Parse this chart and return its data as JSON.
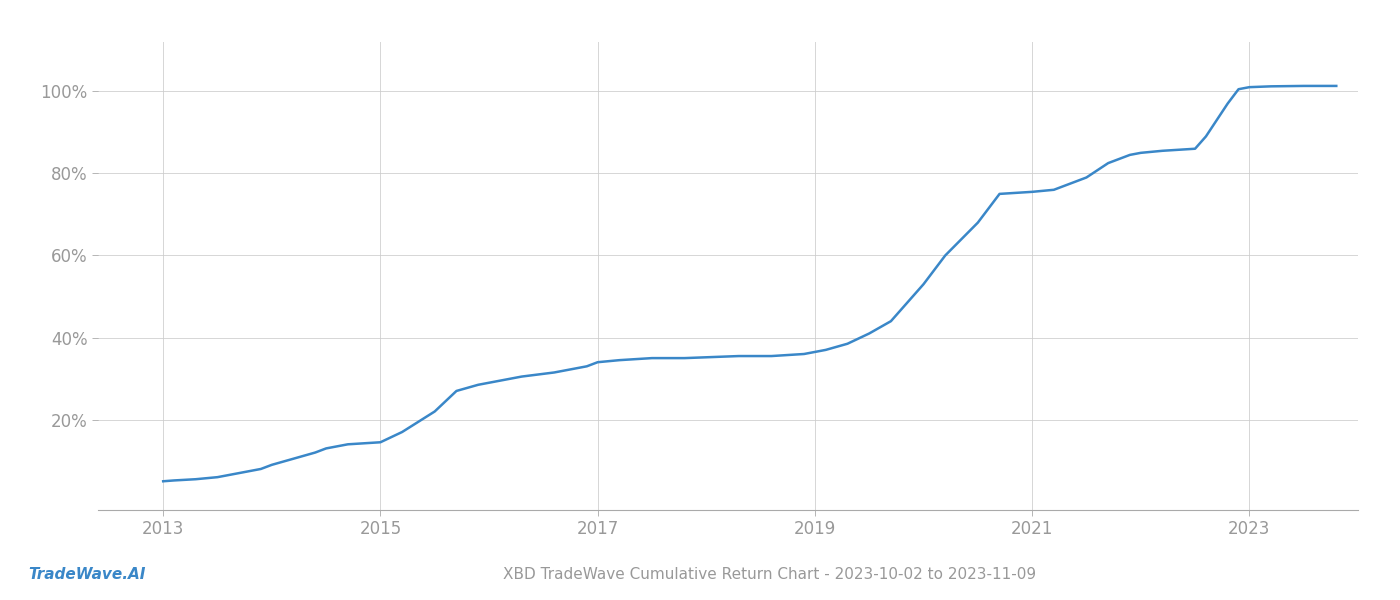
{
  "title": "XBD TradeWave Cumulative Return Chart - 2023-10-02 to 2023-11-09",
  "watermark": "TradeWave.AI",
  "line_color": "#3a87c8",
  "line_width": 1.8,
  "background_color": "#ffffff",
  "grid_color": "#cccccc",
  "x_years": [
    2013.0,
    2013.1,
    2013.3,
    2013.5,
    2013.7,
    2013.9,
    2014.0,
    2014.2,
    2014.4,
    2014.5,
    2014.7,
    2015.0,
    2015.2,
    2015.5,
    2015.7,
    2015.9,
    2016.1,
    2016.3,
    2016.6,
    2016.9,
    2017.0,
    2017.2,
    2017.5,
    2017.8,
    2018.0,
    2018.3,
    2018.6,
    2018.9,
    2019.0,
    2019.1,
    2019.3,
    2019.5,
    2019.7,
    2020.0,
    2020.2,
    2020.5,
    2020.7,
    2021.0,
    2021.2,
    2021.5,
    2021.7,
    2021.9,
    2022.0,
    2022.2,
    2022.5,
    2022.6,
    2022.7,
    2022.8,
    2022.9,
    2023.0,
    2023.2,
    2023.5,
    2023.8
  ],
  "y_values": [
    5.0,
    5.2,
    5.5,
    6.0,
    7.0,
    8.0,
    9.0,
    10.5,
    12.0,
    13.0,
    14.0,
    14.5,
    17.0,
    22.0,
    27.0,
    28.5,
    29.5,
    30.5,
    31.5,
    33.0,
    34.0,
    34.5,
    35.0,
    35.0,
    35.2,
    35.5,
    35.5,
    36.0,
    36.5,
    37.0,
    38.5,
    41.0,
    44.0,
    53.0,
    60.0,
    68.0,
    75.0,
    75.5,
    76.0,
    79.0,
    82.5,
    84.5,
    85.0,
    85.5,
    86.0,
    89.0,
    93.0,
    97.0,
    100.5,
    101.0,
    101.2,
    101.3,
    101.3
  ],
  "yticks": [
    20,
    40,
    60,
    80,
    100
  ],
  "xticks": [
    2013,
    2015,
    2017,
    2019,
    2021,
    2023
  ],
  "xlim": [
    2012.4,
    2024.0
  ],
  "ylim": [
    -2,
    112
  ]
}
